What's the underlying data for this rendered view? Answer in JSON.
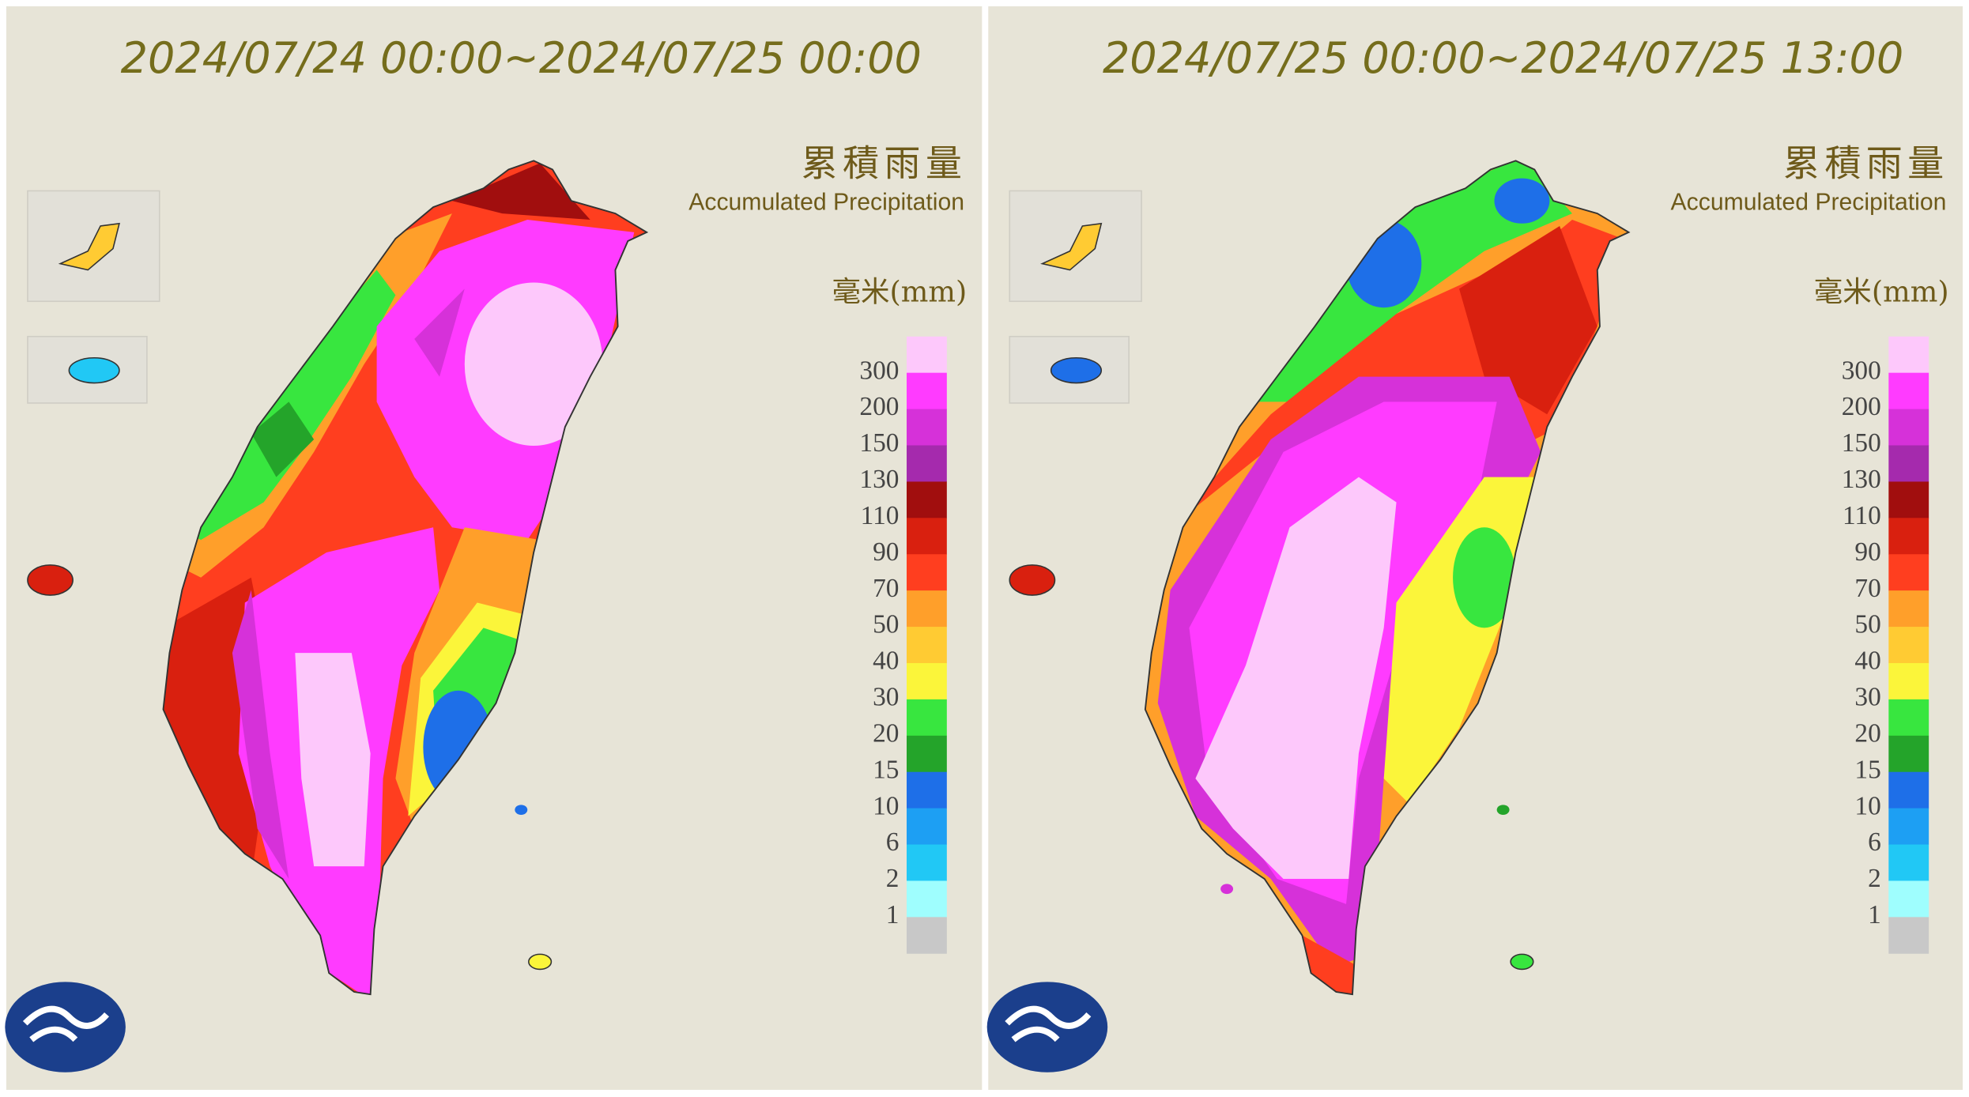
{
  "panels": [
    {
      "title": "2024/07/24 00:00~2024/07/25 00:00"
    },
    {
      "title": "2024/07/25 00:00~2024/07/25 13:00"
    }
  ],
  "legend": {
    "title_zh": "累積雨量",
    "title_en": "Accumulated Precipitation",
    "unit": "毫米(mm)",
    "levels": [
      300,
      200,
      150,
      130,
      110,
      90,
      70,
      50,
      40,
      30,
      20,
      15,
      10,
      6,
      2,
      1
    ],
    "colors": [
      "#fdc8fb",
      "#ff3bff",
      "#d631d9",
      "#a52aad",
      "#a10e0e",
      "#d9200f",
      "#ff3e1f",
      "#ff9f2a",
      "#ffcb33",
      "#fbf53a",
      "#38e63f",
      "#24a42a",
      "#1e6fe8",
      "#1d9ff3",
      "#21c8f5",
      "#9ffefe",
      "#c8c8c8"
    ]
  }
}
